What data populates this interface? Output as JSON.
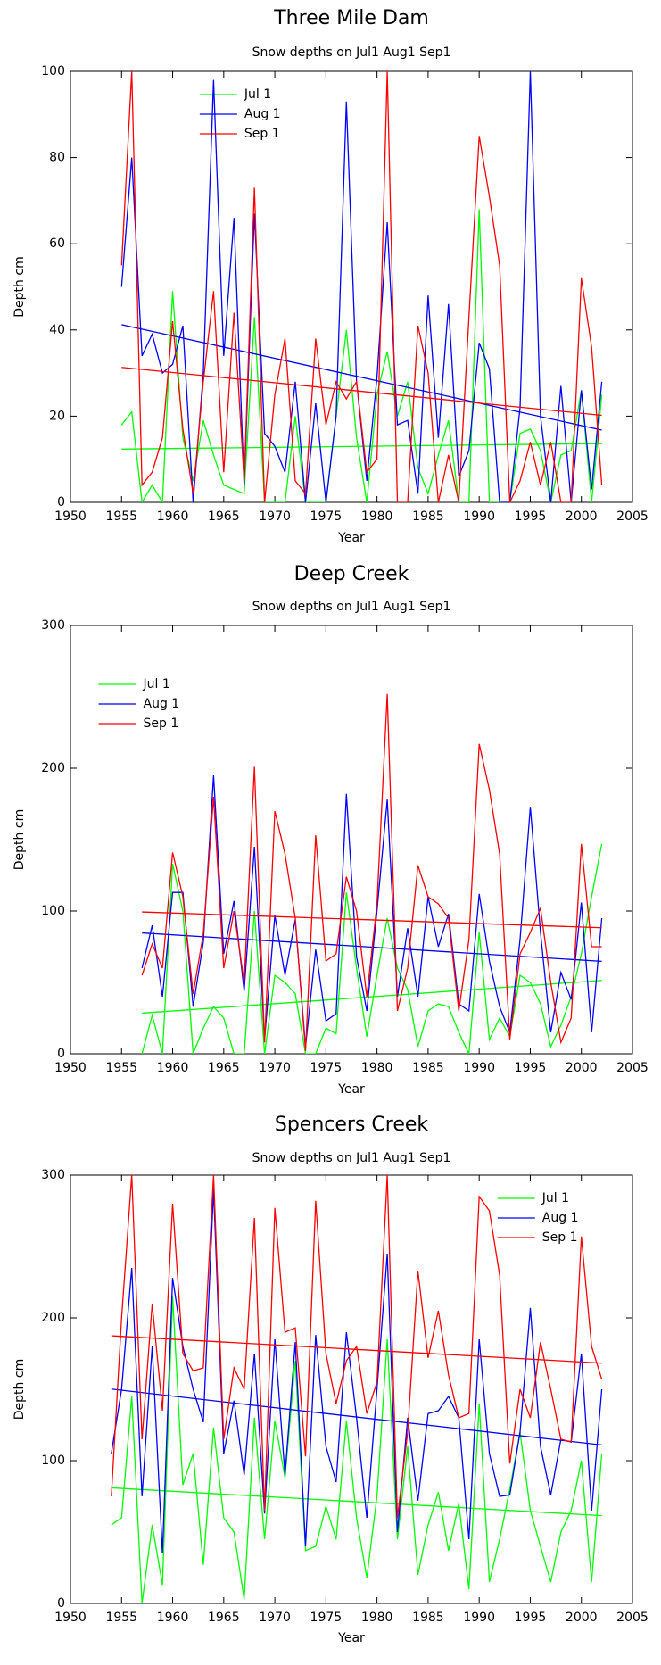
{
  "chart_data": [
    {
      "type": "line",
      "title": "Three Mile Dam",
      "subtitle": "Snow depths on Jul1 Aug1 Sep1",
      "xlabel": "Year",
      "ylabel": "Depth cm",
      "x": [
        1955,
        1956,
        1957,
        1958,
        1959,
        1960,
        1961,
        1962,
        1963,
        1964,
        1965,
        1966,
        1967,
        1968,
        1969,
        1970,
        1971,
        1972,
        1973,
        1974,
        1975,
        1976,
        1977,
        1978,
        1979,
        1980,
        1981,
        1982,
        1983,
        1984,
        1985,
        1986,
        1987,
        1988,
        1989,
        1990,
        1991,
        1992,
        1993,
        1994,
        1995,
        1996,
        1997,
        1998,
        1999,
        2000,
        2001,
        2002
      ],
      "series": [
        {
          "name": "Jul 1",
          "color": "#00ff00",
          "values": [
            18,
            21,
            0,
            4,
            0,
            49,
            15,
            5,
            19,
            11,
            4,
            3,
            2,
            43,
            0,
            0,
            0,
            20,
            0,
            0,
            0,
            20,
            40,
            15,
            0,
            25,
            35,
            20,
            28,
            8,
            2,
            11,
            19,
            0,
            0,
            68,
            0,
            0,
            0,
            16,
            17,
            12,
            0,
            11,
            12,
            26,
            0,
            25
          ]
        },
        {
          "name": "Aug 1",
          "color": "#0000ff",
          "values": [
            50,
            80,
            34,
            39,
            30,
            32,
            41,
            0,
            30,
            98,
            34,
            66,
            4,
            67,
            16,
            13,
            7,
            28,
            0,
            23,
            0,
            20,
            93,
            28,
            5,
            29,
            65,
            18,
            19,
            2,
            48,
            15,
            46,
            6,
            12,
            37,
            31,
            0,
            0,
            22,
            100,
            20,
            0,
            27,
            0,
            26,
            3,
            28
          ]
        },
        {
          "name": "Sep 1",
          "color": "#ff0000",
          "values": [
            55,
            100,
            4,
            7,
            15,
            42,
            17,
            2,
            28,
            49,
            7,
            44,
            5,
            73,
            0,
            25,
            38,
            5,
            2,
            38,
            18,
            28,
            24,
            28,
            7,
            10,
            100,
            0,
            0,
            41,
            30,
            0,
            11,
            0,
            43,
            85,
            71,
            55,
            0,
            5,
            14,
            4,
            14,
            0,
            0,
            52,
            36,
            4
          ]
        }
      ],
      "xlim": [
        1950,
        2005
      ],
      "ylim": [
        0,
        100
      ],
      "xticks": [
        1950,
        1955,
        1960,
        1965,
        1970,
        1975,
        1980,
        1985,
        1990,
        1995,
        2000,
        2005
      ],
      "yticks": [
        0,
        20,
        40,
        60,
        80,
        100
      ],
      "legend": "upper center",
      "trend": true
    },
    {
      "type": "line",
      "title": "Deep Creek",
      "subtitle": "Snow depths on Jul1 Aug1 Sep1",
      "xlabel": "Year",
      "ylabel": "Depth cm",
      "x": [
        1957,
        1958,
        1959,
        1960,
        1961,
        1962,
        1963,
        1964,
        1965,
        1966,
        1967,
        1968,
        1969,
        1970,
        1971,
        1972,
        1973,
        1974,
        1975,
        1976,
        1977,
        1978,
        1979,
        1980,
        1981,
        1982,
        1983,
        1984,
        1985,
        1986,
        1987,
        1988,
        1989,
        1990,
        1991,
        1992,
        1993,
        1994,
        1995,
        1996,
        1997,
        1998,
        1999,
        2000,
        2001,
        2002
      ],
      "series": [
        {
          "name": "Jul 1",
          "color": "#00ff00",
          "values": [
            0,
            27,
            0,
            133,
            100,
            0,
            18,
            33,
            25,
            0,
            0,
            100,
            0,
            55,
            50,
            42,
            0,
            0,
            18,
            14,
            113,
            60,
            12,
            55,
            95,
            60,
            45,
            5,
            30,
            35,
            33,
            15,
            0,
            85,
            10,
            25,
            12,
            55,
            50,
            35,
            5,
            20,
            40,
            70,
            110,
            147
          ]
        },
        {
          "name": "Aug 1",
          "color": "#0000ff",
          "values": [
            60,
            90,
            40,
            113,
            113,
            33,
            78,
            195,
            70,
            107,
            44,
            145,
            10,
            97,
            55,
            94,
            5,
            73,
            23,
            28,
            182,
            68,
            30,
            100,
            178,
            40,
            88,
            40,
            110,
            75,
            98,
            35,
            30,
            112,
            65,
            33,
            15,
            80,
            173,
            85,
            15,
            57,
            38,
            106,
            15,
            95
          ]
        },
        {
          "name": "Sep 1",
          "color": "#ff0000",
          "values": [
            55,
            77,
            60,
            141,
            110,
            42,
            84,
            180,
            60,
            100,
            50,
            201,
            8,
            170,
            140,
            95,
            2,
            153,
            65,
            70,
            124,
            100,
            40,
            105,
            252,
            30,
            60,
            132,
            110,
            105,
            95,
            30,
            80,
            217,
            185,
            140,
            10,
            70,
            85,
            102,
            50,
            8,
            25,
            147,
            75,
            75
          ]
        }
      ],
      "xlim": [
        1950,
        2005
      ],
      "ylim": [
        0,
        300
      ],
      "xticks": [
        1950,
        1955,
        1960,
        1965,
        1970,
        1975,
        1980,
        1985,
        1990,
        1995,
        2000,
        2005
      ],
      "yticks": [
        0,
        100,
        200,
        300
      ],
      "legend": "upper left",
      "trend": true
    },
    {
      "type": "line",
      "title": "Spencers Creek",
      "subtitle": "Snow depths on Jul1 Aug1 Sep1",
      "xlabel": "Year",
      "ylabel": "Depth cm",
      "x": [
        1954,
        1955,
        1956,
        1957,
        1958,
        1959,
        1960,
        1961,
        1962,
        1963,
        1964,
        1965,
        1966,
        1967,
        1968,
        1969,
        1970,
        1971,
        1972,
        1973,
        1974,
        1975,
        1976,
        1977,
        1978,
        1979,
        1980,
        1981,
        1982,
        1983,
        1984,
        1985,
        1986,
        1987,
        1988,
        1989,
        1990,
        1991,
        1992,
        1993,
        1994,
        1995,
        1996,
        1997,
        1998,
        1999,
        2000,
        2001,
        2002
      ],
      "series": [
        {
          "name": "Jul 1",
          "color": "#00ff00",
          "values": [
            55,
            60,
            145,
            0,
            55,
            13,
            215,
            83,
            105,
            27,
            123,
            60,
            50,
            3,
            130,
            45,
            128,
            88,
            170,
            37,
            40,
            68,
            45,
            128,
            60,
            18,
            75,
            185,
            45,
            110,
            20,
            55,
            78,
            37,
            70,
            10,
            140,
            15,
            45,
            80,
            120,
            65,
            40,
            15,
            50,
            65,
            100,
            15,
            105
          ]
        },
        {
          "name": "Aug 1",
          "color": "#0000ff",
          "values": [
            105,
            150,
            235,
            75,
            180,
            35,
            228,
            180,
            150,
            127,
            290,
            105,
            142,
            90,
            175,
            63,
            185,
            90,
            183,
            40,
            188,
            110,
            85,
            190,
            130,
            60,
            150,
            245,
            50,
            130,
            72,
            133,
            135,
            145,
            130,
            45,
            185,
            105,
            75,
            76,
            120,
            207,
            110,
            76,
            115,
            113,
            175,
            65,
            150
          ]
        },
        {
          "name": "Sep 1",
          "color": "#ff0000",
          "values": [
            75,
            200,
            300,
            115,
            210,
            135,
            280,
            175,
            163,
            165,
            300,
            115,
            165,
            150,
            270,
            65,
            277,
            190,
            193,
            103,
            282,
            175,
            140,
            170,
            180,
            133,
            155,
            300,
            60,
            120,
            233,
            172,
            205,
            160,
            130,
            133,
            285,
            275,
            230,
            98,
            150,
            130,
            183,
            150,
            115,
            113,
            257,
            180,
            157
          ]
        }
      ],
      "xlim": [
        1950,
        2005
      ],
      "ylim": [
        0,
        300
      ],
      "xticks": [
        1950,
        1955,
        1960,
        1965,
        1970,
        1975,
        1980,
        1985,
        1990,
        1995,
        2000,
        2005
      ],
      "yticks": [
        0,
        100,
        200,
        300
      ],
      "legend": "upper right",
      "trend": true
    }
  ]
}
